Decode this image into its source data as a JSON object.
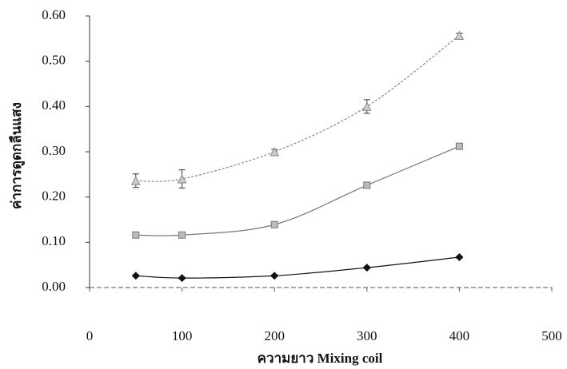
{
  "chart_data": {
    "type": "line",
    "x_label": "ความยาว Mixing coil",
    "y_label": "ค่าการดูดกลืนแสง",
    "x": [
      50,
      100,
      200,
      300,
      400
    ],
    "series": [
      {
        "color": "#888888",
        "marker": "triangle",
        "values": [
          0.236,
          0.24,
          0.3,
          0.4,
          0.557
        ],
        "errors": [
          0.015,
          0.02,
          0.005,
          0.015,
          0.005
        ]
      },
      {
        "color": "#777777",
        "marker": "square",
        "values": [
          0.116,
          0.116,
          0.139,
          0.226,
          0.312
        ],
        "errors": [
          0.004,
          0.004,
          0.004,
          0.006,
          0.004
        ]
      },
      {
        "color": "#111111",
        "marker": "diamond",
        "values": [
          0.026,
          0.021,
          0.026,
          0.044,
          0.067
        ],
        "errors": [
          0.002,
          0.002,
          0.002,
          0.002,
          0.002
        ]
      }
    ],
    "xlim": [
      0,
      500
    ],
    "xticks": [
      0,
      100,
      200,
      300,
      400,
      500
    ],
    "ylim": [
      0,
      0.6
    ],
    "yticks": [
      {
        "value": 0,
        "label": "0.00"
      },
      {
        "value": 0.1,
        "label": "0.10"
      },
      {
        "value": 0.2,
        "label": "0.20"
      },
      {
        "value": 0.3,
        "label": "0.30"
      },
      {
        "value": 0.4,
        "label": "0.40"
      },
      {
        "value": 0.5,
        "label": "0.50"
      },
      {
        "value": 0.6,
        "label": "0.60"
      }
    ],
    "grid": false
  }
}
